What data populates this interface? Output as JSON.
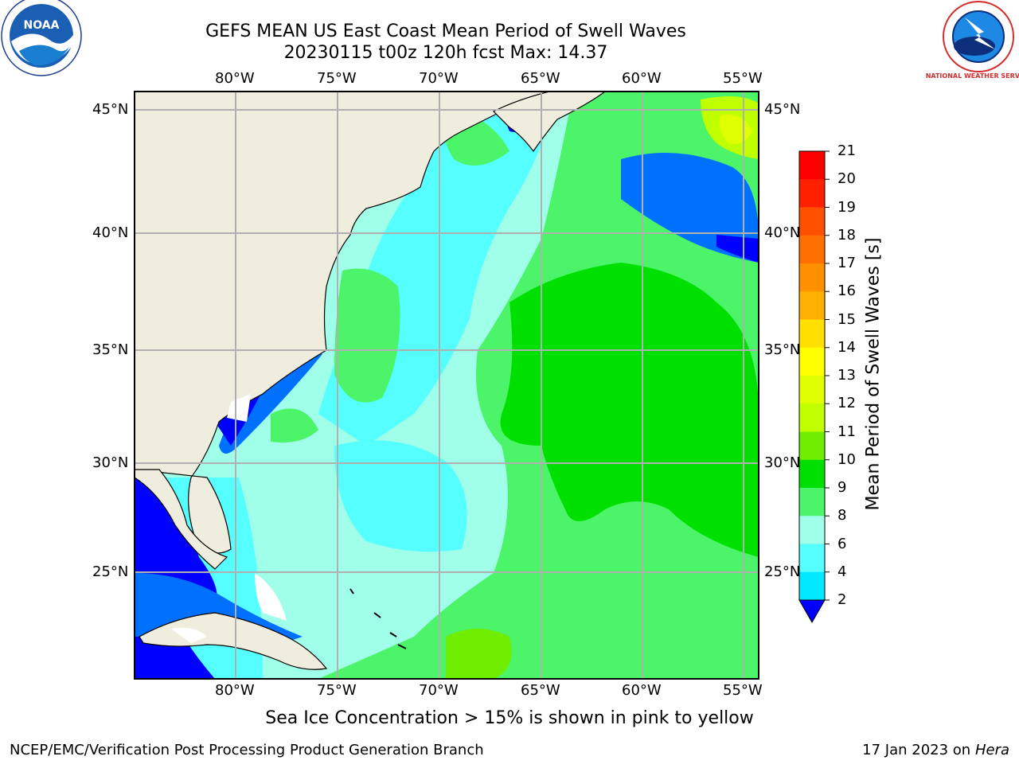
{
  "header": {
    "title": "GEFS MEAN US East Coast Mean Period of Swell Waves",
    "subtitle": "20230115 t00z 120h fcst   Max: 14.37"
  },
  "logos": {
    "left": "NOAA",
    "right": "NATIONAL WEATHER SERVICE"
  },
  "map": {
    "lon_labels": [
      "80°W",
      "75°W",
      "70°W",
      "65°W",
      "60°W",
      "55°W"
    ],
    "lat_labels": [
      "45°N",
      "40°N",
      "35°N",
      "30°N",
      "25°N"
    ]
  },
  "colorbar": {
    "title": "Mean Period of Swell Waves [s]",
    "ticks": [
      "21",
      "20",
      "19",
      "18",
      "17",
      "16",
      "15",
      "14",
      "13",
      "12",
      "11",
      "10",
      "9",
      "8",
      "6",
      "4",
      "2"
    ],
    "colors": [
      "#ff0000",
      "#ff2000",
      "#ff5000",
      "#ff7000",
      "#ff9000",
      "#ffb000",
      "#ffe000",
      "#ffff00",
      "#e0ff00",
      "#c0ff00",
      "#70ee00",
      "#00e000",
      "#4cf46a",
      "#a0ffe8",
      "#55ffff",
      "#00e8ff",
      "#0070ff",
      "#0000ff"
    ]
  },
  "footer": {
    "note": "Sea Ice Concentration > 15% is shown in pink to yellow",
    "left": "NCEP/EMC/Verification Post Processing Product Generation Branch",
    "right_date": "17 Jan 2023 on",
    "right_machine": "Hera"
  }
}
